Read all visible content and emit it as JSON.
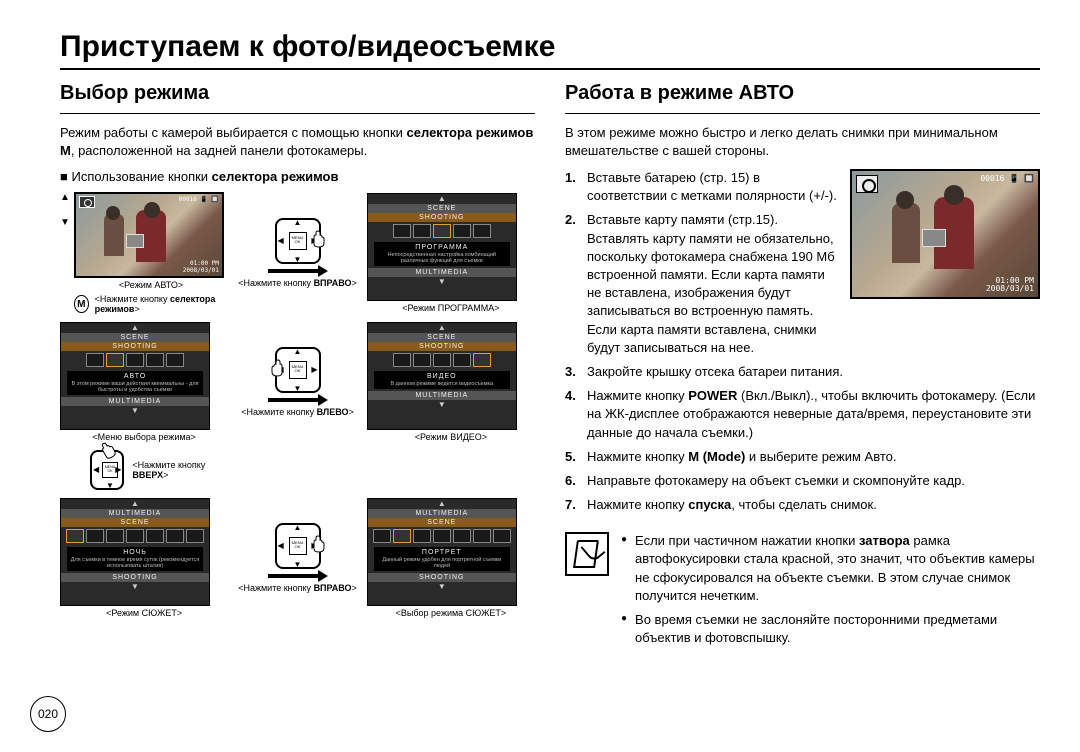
{
  "page": {
    "title": "Приступаем к фото/видеосъемке",
    "number": "020"
  },
  "left": {
    "subtitle": "Выбор режима",
    "intro_html": "Режим работы с камерой выбирается с помощью кнопки <b>селектора режимов M</b>, расположенной на задней панели фотокамеры.",
    "bullet_header_html": "Использование кнопки <b>селектора режимов</b>",
    "lcd_preview": {
      "osd_tl": "📷",
      "osd_tr": "00016 📱 🔲",
      "osd_br_line1": "01:00 PM",
      "osd_br_line2": "2008/03/01",
      "caption": "<Режим АВТО>"
    },
    "press_m_html": "<Нажмите кнопку <b>селектора режимов</b>>",
    "m_button": "M",
    "menu_auto": {
      "top_tab": "SCENE",
      "mid_tab": "SHOOTING",
      "mode_name": "АВТО",
      "mode_desc": "В этом режиме ваши действия минимальны - для быстроты и удобства съемки",
      "bot_tab": "MULTIMEDIA",
      "caption": "<Меню выбора режима>"
    },
    "arrow1_html": "<Нажмите кнопку <b>ВПРАВО</b>>",
    "dpad_center": "MENU\nOK",
    "menu_program": {
      "top_tab": "SCENE",
      "mid_tab": "SHOOTING",
      "mode_name": "ПРОГРАММА",
      "mode_desc": "Непосредственная настройка комбинаций различных функций для съемки",
      "bot_tab": "MULTIMEDIA",
      "caption": "<Режим ПРОГРАММА>"
    },
    "arrow2_html": "<Нажмите кнопку <b>ВЛЕВО</b>>",
    "menu_video": {
      "top_tab": "SCENE",
      "mid_tab": "SHOOTING",
      "mode_name": "ВИДЕО",
      "mode_desc": "В данном режиме ведется видеосъемка",
      "bot_tab": "MULTIMEDIA",
      "caption": "<Режим ВИДЕО>"
    },
    "press_up_html": "<Нажмите кнопку <b>ВВЕРХ</b>>",
    "menu_scene": {
      "top_tab": "MULTIMEDIA",
      "mid_tab": "SCENE",
      "mode_name": "НОЧЬ",
      "mode_desc": "Для съемки в темное время суток (рекомендуется использовать штатив)",
      "bot_tab": "SHOOTING",
      "caption": "<Режим СЮЖЕТ>"
    },
    "arrow3_html": "<Нажмите кнопку <b>ВПРАВО</b>>",
    "menu_scene_sel": {
      "top_tab": "MULTIMEDIA",
      "mid_tab": "SCENE",
      "mode_name": "ПОРТРЕТ",
      "mode_desc": "Данный режим удобен для портретной съемки людей",
      "bot_tab": "SHOOTING",
      "caption": "<Выбор режима СЮЖЕТ>"
    }
  },
  "right": {
    "subtitle": "Работа в режиме АВТО",
    "intro": "В этом режиме можно быстро и легко делать снимки при минимальном вмешательстве с вашей стороны.",
    "lcd": {
      "osd_tr": "00016 📱 🔲",
      "osd_br_line1": "01:00 PM",
      "osd_br_line2": "2008/03/01"
    },
    "steps": [
      {
        "n": "1.",
        "html": "Вставьте батарею (стр. 15) в соответствии с метками полярности (+/-)."
      },
      {
        "n": "2.",
        "html": "Вставьте карту памяти (стр.15). Вставлять карту памяти не обязательно, поскольку фотокамера снабжена 190 Мб встроенной памяти. Если карта памяти не вставлена, изображения будут записываться во встроенную память. Если карта памяти вставлена, снимки будут записываться на нее."
      },
      {
        "n": "3.",
        "html": "Закройте крышку отсека батареи питания."
      },
      {
        "n": "4.",
        "html": "Нажмите кнопку <b>POWER</b> (Вкл./Выкл)., чтобы включить фотокамеру. (Если на ЖК-дисплее отображаются неверные дата/время, переустановите эти данные до начала съемки.)"
      },
      {
        "n": "5.",
        "html": "Нажмите кнопку <b>M (Mode)</b> и выберите режим Авто."
      },
      {
        "n": "6.",
        "html": "Направьте фотокамеру на объект съемки и скомпонуйте кадр."
      },
      {
        "n": "7.",
        "html": "Нажмите кнопку <b>спуска</b>, чтобы сделать снимок."
      }
    ],
    "notes": [
      "Если при частичном нажатии кнопки <b>затвора</b> рамка автофокусировки стала красной, это значит, что объектив камеры не сфокусировался на объекте съемки. В этом случае снимок получится нечетким.",
      "Во время съемки не заслоняйте посторонними предметами объектив и фотовспышку."
    ]
  }
}
